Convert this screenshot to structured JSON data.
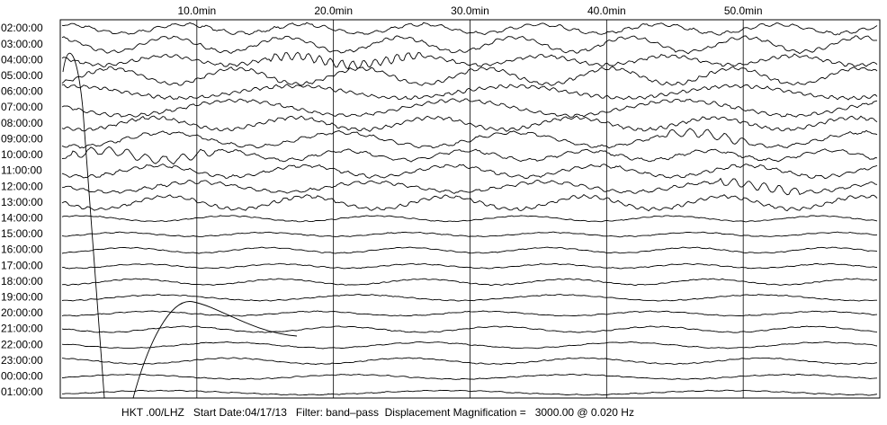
{
  "chart_data": {
    "type": "helicorder",
    "xlim": [
      0,
      60
    ],
    "xticks": [
      {
        "value": 10,
        "label": "10.0min"
      },
      {
        "value": 20,
        "label": "20.0min"
      },
      {
        "value": 30,
        "label": "30.0min"
      },
      {
        "value": 40,
        "label": "40.0min"
      },
      {
        "value": 50,
        "label": "50.0min"
      }
    ],
    "categories": [
      "02:00:00",
      "03:00:00",
      "04:00:00",
      "05:00:00",
      "06:00:00",
      "07:00:00",
      "08:00:00",
      "09:00:00",
      "10:00:00",
      "11:00:00",
      "12:00:00",
      "13:00:00",
      "14:00:00",
      "15:00:00",
      "16:00:00",
      "17:00:00",
      "18:00:00",
      "19:00:00",
      "20:00:00",
      "21:00:00",
      "22:00:00",
      "23:00:00",
      "00:00:00",
      "01:00:00"
    ],
    "footer": "HKT .00/LHZ   Start Date:04/17/13   Filter: band–pass  Displacement Magnification =   3000.00 @ 0.020 Hz",
    "grid": true
  }
}
